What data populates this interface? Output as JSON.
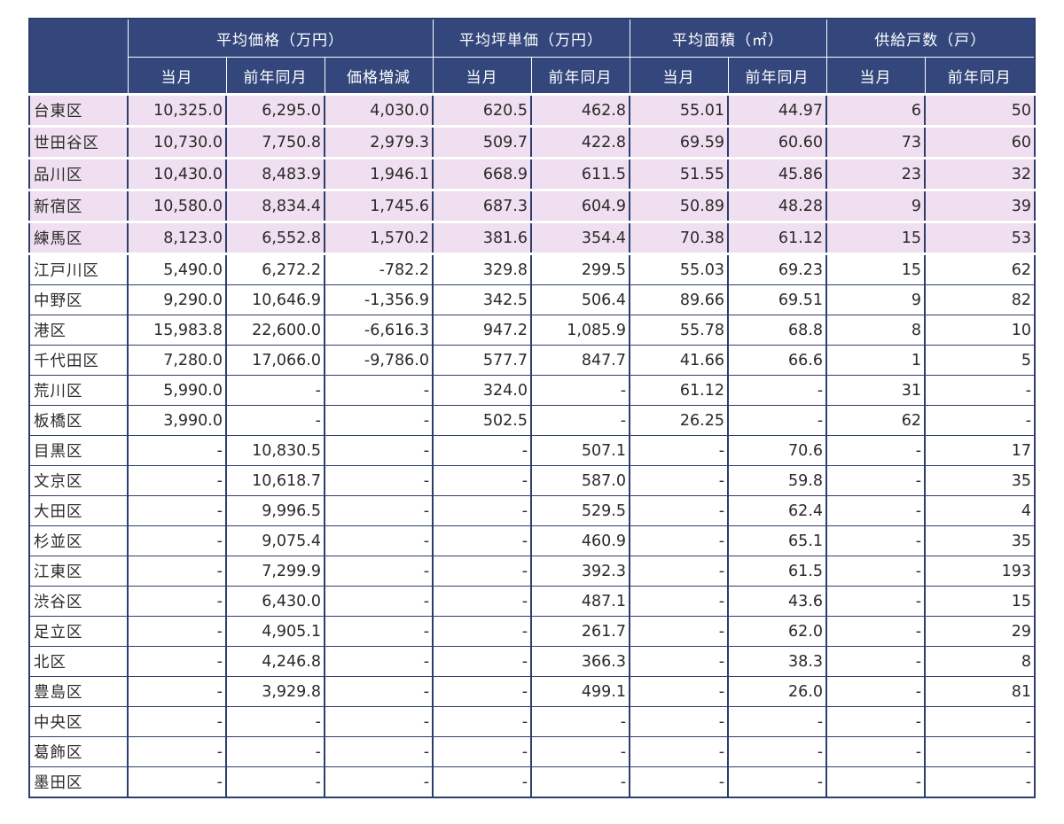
{
  "table": {
    "corner_label": "",
    "groups": [
      {
        "label": "平均価格（万円）",
        "span": 3
      },
      {
        "label": "平均坪単価（万円）",
        "span": 2
      },
      {
        "label": "平均面積（㎡）",
        "span": 2
      },
      {
        "label": "供給戸数（戸）",
        "span": 2
      }
    ],
    "subheaders": [
      "当月",
      "前年同月",
      "価格増減",
      "当月",
      "前年同月",
      "当月",
      "前年同月",
      "当月",
      "前年同月"
    ],
    "highlight_color": "#f0dff0",
    "header_color": "#34477c",
    "rows": [
      {
        "ward": "台東区",
        "cells": [
          "10,325.0",
          "6,295.0",
          "4,030.0",
          "620.5",
          "462.8",
          "55.01",
          "44.97",
          "6",
          "50"
        ],
        "highlight": true
      },
      {
        "ward": "世田谷区",
        "cells": [
          "10,730.0",
          "7,750.8",
          "2,979.3",
          "509.7",
          "422.8",
          "69.59",
          "60.60",
          "73",
          "60"
        ],
        "highlight": true
      },
      {
        "ward": "品川区",
        "cells": [
          "10,430.0",
          "8,483.9",
          "1,946.1",
          "668.9",
          "611.5",
          "51.55",
          "45.86",
          "23",
          "32"
        ],
        "highlight": true
      },
      {
        "ward": "新宿区",
        "cells": [
          "10,580.0",
          "8,834.4",
          "1,745.6",
          "687.3",
          "604.9",
          "50.89",
          "48.28",
          "9",
          "39"
        ],
        "highlight": true
      },
      {
        "ward": "練馬区",
        "cells": [
          "8,123.0",
          "6,552.8",
          "1,570.2",
          "381.6",
          "354.4",
          "70.38",
          "61.12",
          "15",
          "53"
        ],
        "highlight": true
      },
      {
        "ward": "江戸川区",
        "cells": [
          "5,490.0",
          "6,272.2",
          "-782.2",
          "329.8",
          "299.5",
          "55.03",
          "69.23",
          "15",
          "62"
        ],
        "highlight": false
      },
      {
        "ward": "中野区",
        "cells": [
          "9,290.0",
          "10,646.9",
          "-1,356.9",
          "342.5",
          "506.4",
          "89.66",
          "69.51",
          "9",
          "82"
        ],
        "highlight": false
      },
      {
        "ward": "港区",
        "cells": [
          "15,983.8",
          "22,600.0",
          "-6,616.3",
          "947.2",
          "1,085.9",
          "55.78",
          "68.8",
          "8",
          "10"
        ],
        "highlight": false
      },
      {
        "ward": "千代田区",
        "cells": [
          "7,280.0",
          "17,066.0",
          "-9,786.0",
          "577.7",
          "847.7",
          "41.66",
          "66.6",
          "1",
          "5"
        ],
        "highlight": false
      },
      {
        "ward": "荒川区",
        "cells": [
          "5,990.0",
          "-",
          "-",
          "324.0",
          "-",
          "61.12",
          "-",
          "31",
          "-"
        ],
        "highlight": false
      },
      {
        "ward": "板橋区",
        "cells": [
          "3,990.0",
          "-",
          "-",
          "502.5",
          "-",
          "26.25",
          "-",
          "62",
          "-"
        ],
        "highlight": false
      },
      {
        "ward": "目黒区",
        "cells": [
          "-",
          "10,830.5",
          "-",
          "-",
          "507.1",
          "-",
          "70.6",
          "-",
          "17"
        ],
        "highlight": false
      },
      {
        "ward": "文京区",
        "cells": [
          "-",
          "10,618.7",
          "-",
          "-",
          "587.0",
          "-",
          "59.8",
          "-",
          "35"
        ],
        "highlight": false
      },
      {
        "ward": "大田区",
        "cells": [
          "-",
          "9,996.5",
          "-",
          "-",
          "529.5",
          "-",
          "62.4",
          "-",
          "4"
        ],
        "highlight": false
      },
      {
        "ward": "杉並区",
        "cells": [
          "-",
          "9,075.4",
          "-",
          "-",
          "460.9",
          "-",
          "65.1",
          "-",
          "35"
        ],
        "highlight": false
      },
      {
        "ward": "江東区",
        "cells": [
          "-",
          "7,299.9",
          "-",
          "-",
          "392.3",
          "-",
          "61.5",
          "-",
          "193"
        ],
        "highlight": false
      },
      {
        "ward": "渋谷区",
        "cells": [
          "-",
          "6,430.0",
          "-",
          "-",
          "487.1",
          "-",
          "43.6",
          "-",
          "15"
        ],
        "highlight": false
      },
      {
        "ward": "足立区",
        "cells": [
          "-",
          "4,905.1",
          "-",
          "-",
          "261.7",
          "-",
          "62.0",
          "-",
          "29"
        ],
        "highlight": false
      },
      {
        "ward": "北区",
        "cells": [
          "-",
          "4,246.8",
          "-",
          "-",
          "366.3",
          "-",
          "38.3",
          "-",
          "8"
        ],
        "highlight": false
      },
      {
        "ward": "豊島区",
        "cells": [
          "-",
          "3,929.8",
          "-",
          "-",
          "499.1",
          "-",
          "26.0",
          "-",
          "81"
        ],
        "highlight": false
      },
      {
        "ward": "中央区",
        "cells": [
          "-",
          "-",
          "-",
          "-",
          "-",
          "-",
          "-",
          "-",
          "-"
        ],
        "highlight": false
      },
      {
        "ward": "葛飾区",
        "cells": [
          "-",
          "-",
          "-",
          "-",
          "-",
          "-",
          "-",
          "-",
          "-"
        ],
        "highlight": false
      },
      {
        "ward": "墨田区",
        "cells": [
          "-",
          "-",
          "-",
          "-",
          "-",
          "-",
          "-",
          "-",
          "-"
        ],
        "highlight": false
      }
    ]
  }
}
